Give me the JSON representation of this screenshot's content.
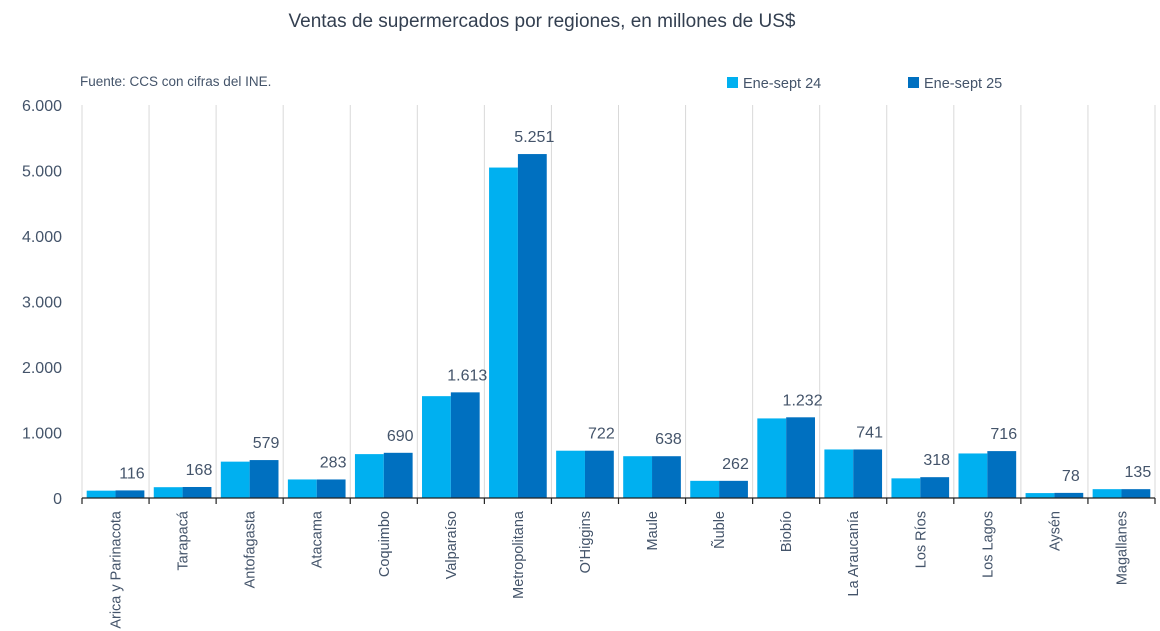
{
  "chart_data": {
    "type": "bar",
    "title": "Ventas de supermercados por regiones, en millones de US$",
    "source_note": "Fuente: CCS con cifras del INE.",
    "xlabel": "",
    "ylabel": "",
    "ylim": [
      0,
      6000
    ],
    "yticks": [
      0,
      1000,
      2000,
      3000,
      4000,
      5000,
      6000
    ],
    "ytick_labels": [
      "0",
      "1.000",
      "2.000",
      "3.000",
      "4.000",
      "5.000",
      "6.000"
    ],
    "grid": "vertical separators",
    "legend_position": "top-right",
    "categories": [
      "Arica y Parinacota",
      "Tarapacá",
      "Antofagasta",
      "Atacama",
      "Coquimbo",
      "Valparaíso",
      "Metropolitana",
      "O'Higgins",
      "Maule",
      "Ñuble",
      "Biobío",
      "La Araucanía",
      "Los Ríos",
      "Los Lagos",
      "Aysén",
      "Magallanes"
    ],
    "series": [
      {
        "name": "Ene-sept 24",
        "color": "#00b0f0",
        "values": [
          112,
          165,
          555,
          283,
          670,
          1555,
          5045,
          722,
          638,
          262,
          1215,
          741,
          300,
          680,
          75,
          135
        ]
      },
      {
        "name": "Ene-sept 25",
        "color": "#0070c0",
        "values": [
          116,
          168,
          579,
          283,
          690,
          1613,
          5251,
          722,
          638,
          262,
          1232,
          741,
          318,
          716,
          78,
          135
        ]
      }
    ],
    "data_labels": [
      "116",
      "168",
      "579",
      "283",
      "690",
      "1.613",
      "5.251",
      "722",
      "638",
      "262",
      "1.232",
      "741",
      "318",
      "716",
      "78",
      "135"
    ]
  }
}
